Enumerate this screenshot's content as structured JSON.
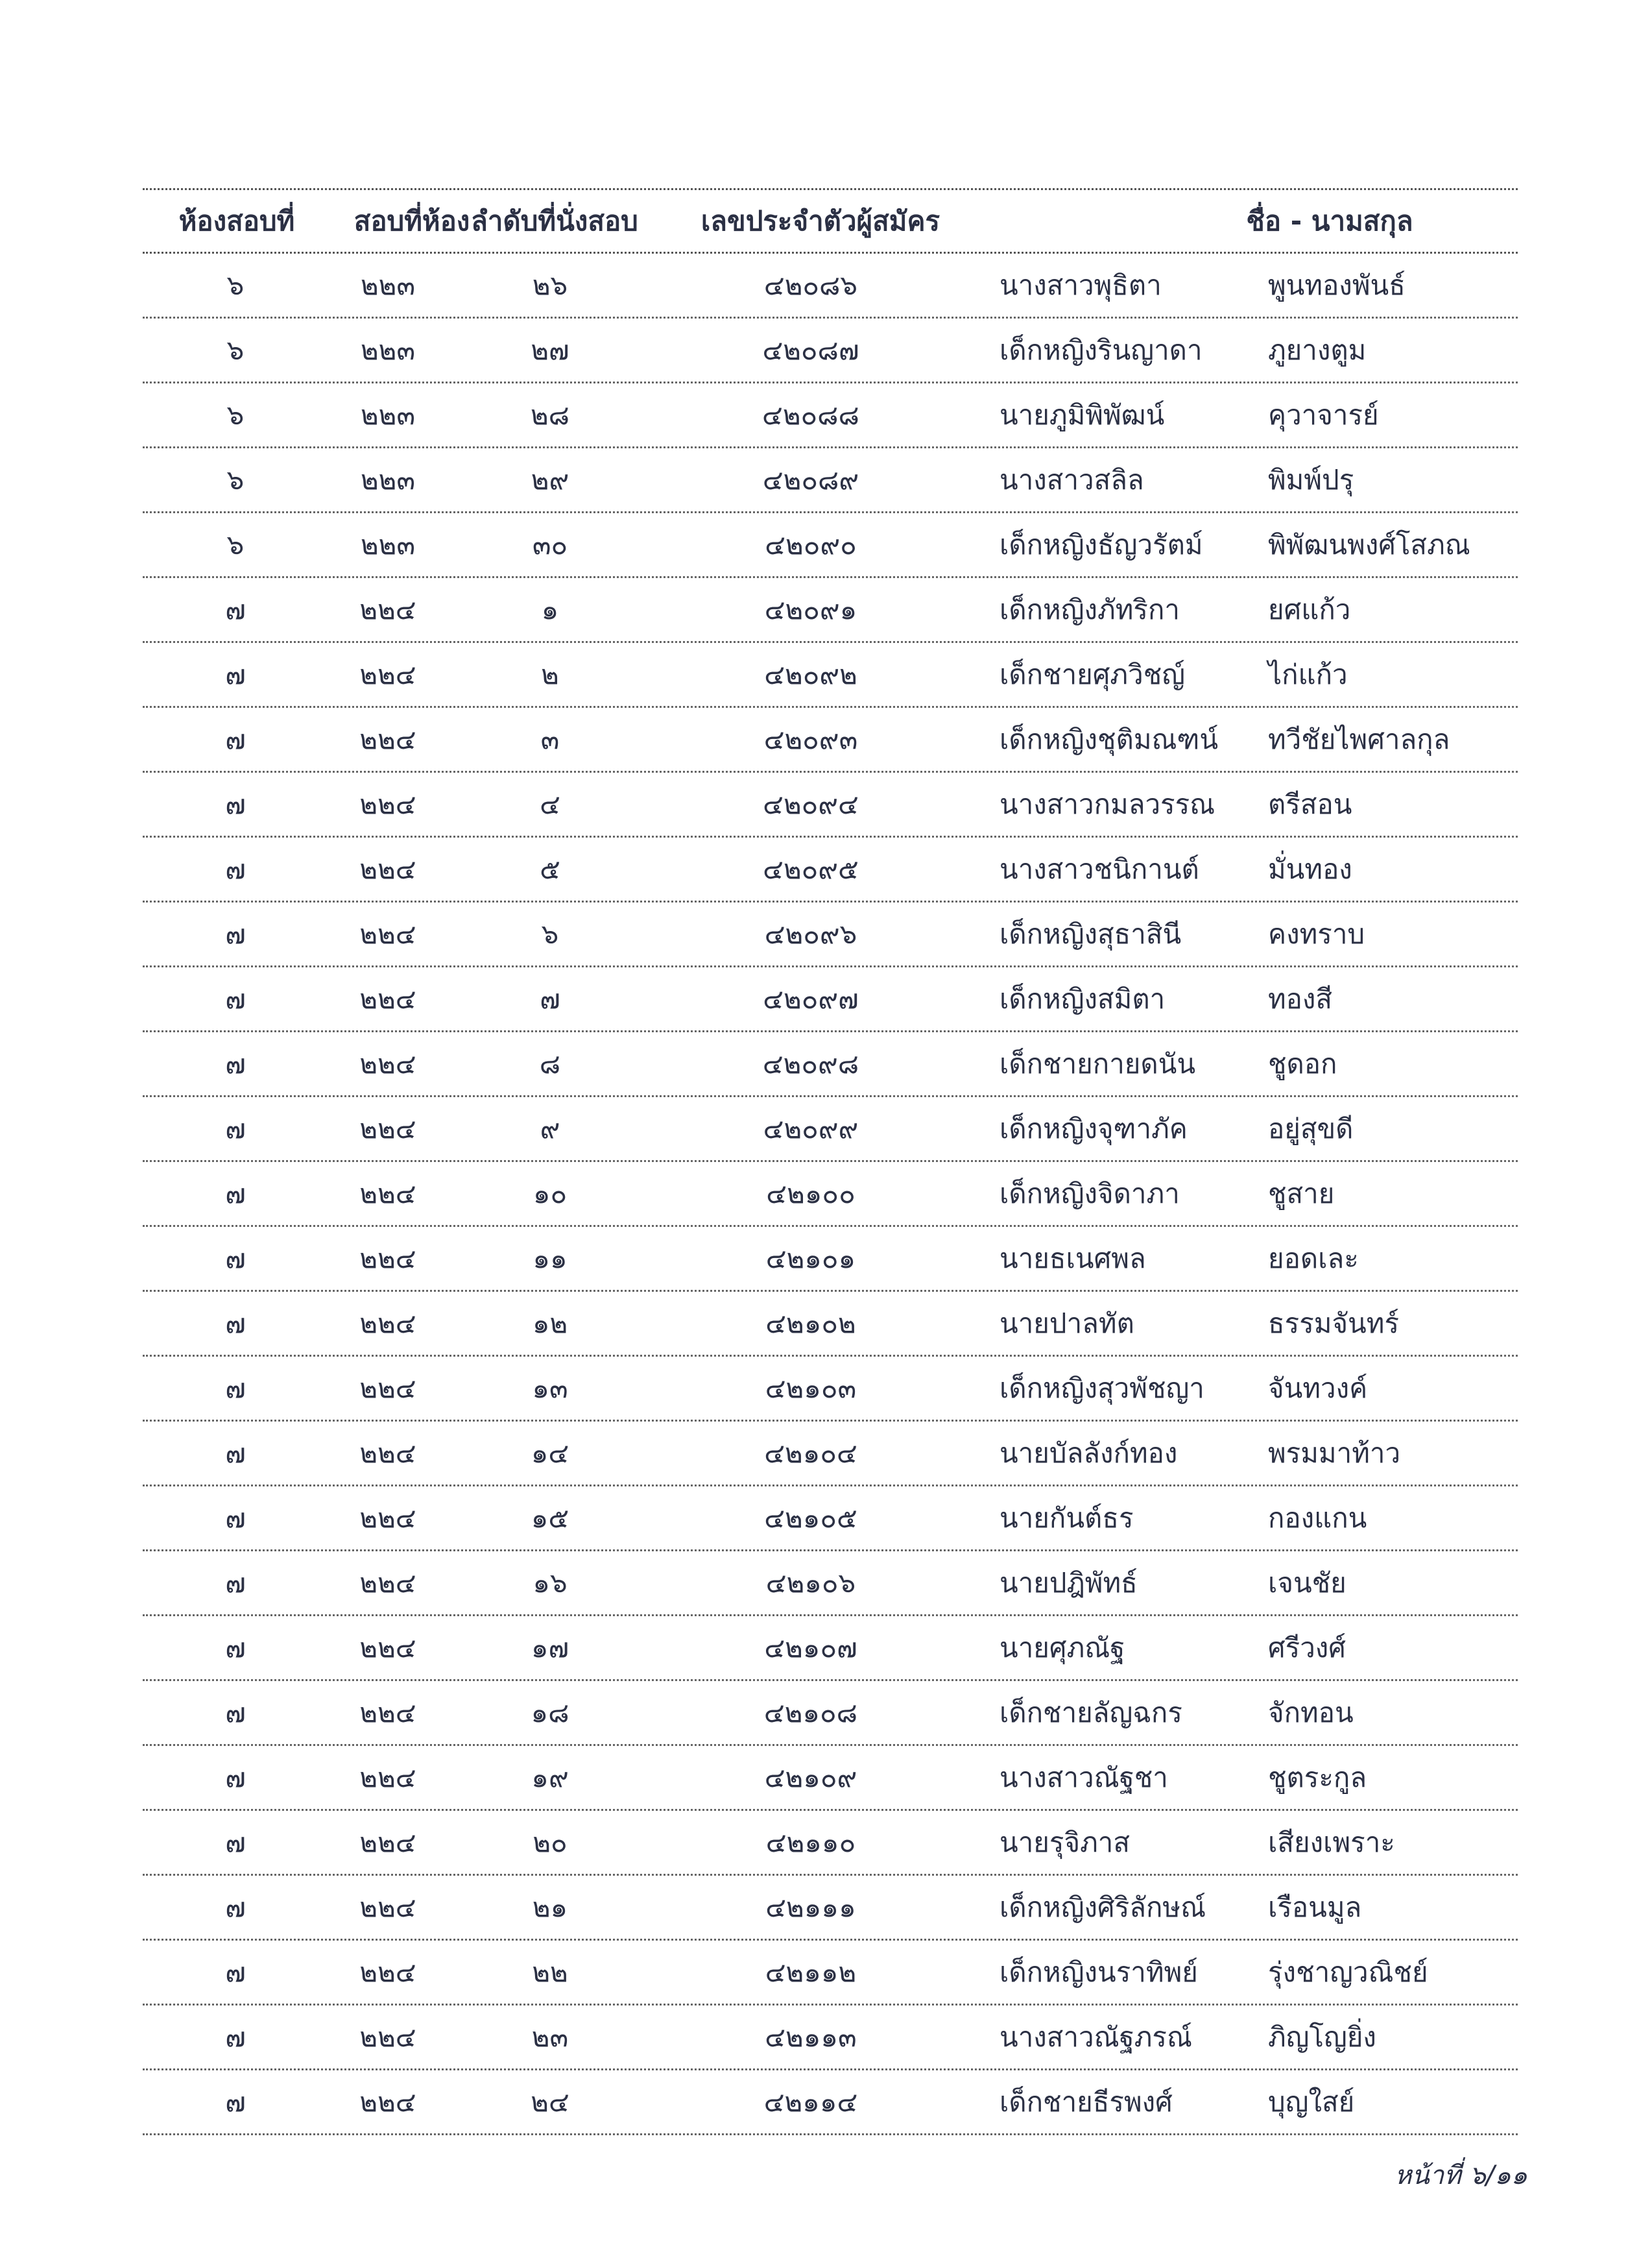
{
  "header": {
    "room": "ห้องสอบที่",
    "exam_room": "สอบที่ห้อง",
    "seat": "ลำดับที่นั่งสอบ",
    "applicant_id": "เลขประจำตัวผู้สมัคร",
    "name": "ชื่อ - นามสกุล"
  },
  "rows": [
    [
      "๖",
      "๒๒๓",
      "๒๖",
      "๔๒๐๘๖",
      "นางสาวพุธิตา",
      "พูนทองพันธ์"
    ],
    [
      "๖",
      "๒๒๓",
      "๒๗",
      "๔๒๐๘๗",
      "เด็กหญิงรินญาดา",
      "ภูยางตูม"
    ],
    [
      "๖",
      "๒๒๓",
      "๒๘",
      "๔๒๐๘๘",
      "นายภูมิพิพัฒน์",
      "คุวาจารย์"
    ],
    [
      "๖",
      "๒๒๓",
      "๒๙",
      "๔๒๐๘๙",
      "นางสาวสลิล",
      "พิมพ์ปรุ"
    ],
    [
      "๖",
      "๒๒๓",
      "๓๐",
      "๔๒๐๙๐",
      "เด็กหญิงธัญวรัตม์",
      "พิพัฒนพงศ์โสภณ"
    ],
    [
      "๗",
      "๒๒๔",
      "๑",
      "๔๒๐๙๑",
      "เด็กหญิงภัทริกา",
      "ยศแก้ว"
    ],
    [
      "๗",
      "๒๒๔",
      "๒",
      "๔๒๐๙๒",
      "เด็กชายศุภวิชญ์",
      "ไก่แก้ว"
    ],
    [
      "๗",
      "๒๒๔",
      "๓",
      "๔๒๐๙๓",
      "เด็กหญิงชุติมณฑน์",
      "ทวีชัยไพศาลกุล"
    ],
    [
      "๗",
      "๒๒๔",
      "๔",
      "๔๒๐๙๔",
      "นางสาวกมลวรรณ",
      "ตรีสอน"
    ],
    [
      "๗",
      "๒๒๔",
      "๕",
      "๔๒๐๙๕",
      "นางสาวชนิกานต์",
      "มั่นทอง"
    ],
    [
      "๗",
      "๒๒๔",
      "๖",
      "๔๒๐๙๖",
      "เด็กหญิงสุธาสินี",
      "คงทราบ"
    ],
    [
      "๗",
      "๒๒๔",
      "๗",
      "๔๒๐๙๗",
      "เด็กหญิงสมิตา",
      "ทองสี"
    ],
    [
      "๗",
      "๒๒๔",
      "๘",
      "๔๒๐๙๘",
      "เด็กชายกายดนัน",
      "ชูดอก"
    ],
    [
      "๗",
      "๒๒๔",
      "๙",
      "๔๒๐๙๙",
      "เด็กหญิงจุฑาภัค",
      "อยู่สุขดี"
    ],
    [
      "๗",
      "๒๒๔",
      "๑๐",
      "๔๒๑๐๐",
      "เด็กหญิงจิดาภา",
      "ชูสาย"
    ],
    [
      "๗",
      "๒๒๔",
      "๑๑",
      "๔๒๑๐๑",
      "นายธเนศพล",
      "ยอดเละ"
    ],
    [
      "๗",
      "๒๒๔",
      "๑๒",
      "๔๒๑๐๒",
      "นายปาลทัต",
      "ธรรมจันทร์"
    ],
    [
      "๗",
      "๒๒๔",
      "๑๓",
      "๔๒๑๐๓",
      "เด็กหญิงสุวพัชญา",
      "จันทวงค์"
    ],
    [
      "๗",
      "๒๒๔",
      "๑๔",
      "๔๒๑๐๔",
      "นายบัลลังก์ทอง",
      "พรมมาท้าว"
    ],
    [
      "๗",
      "๒๒๔",
      "๑๕",
      "๔๒๑๐๕",
      "นายกันต์ธร",
      "กองแกน"
    ],
    [
      "๗",
      "๒๒๔",
      "๑๖",
      "๔๒๑๐๖",
      "นายปฎิพัทธ์",
      "เจนชัย"
    ],
    [
      "๗",
      "๒๒๔",
      "๑๗",
      "๔๒๑๐๗",
      "นายศุภณัฐ",
      "ศรีวงศ์"
    ],
    [
      "๗",
      "๒๒๔",
      "๑๘",
      "๔๒๑๐๘",
      "เด็กชายลัญฉกร",
      "จักทอน"
    ],
    [
      "๗",
      "๒๒๔",
      "๑๙",
      "๔๒๑๐๙",
      "นางสาวณัฐชา",
      "ชูตระกูล"
    ],
    [
      "๗",
      "๒๒๔",
      "๒๐",
      "๔๒๑๑๐",
      "นายรุจิภาส",
      "เสียงเพราะ"
    ],
    [
      "๗",
      "๒๒๔",
      "๒๑",
      "๔๒๑๑๑",
      "เด็กหญิงศิริลักษณ์",
      "เรือนมูล"
    ],
    [
      "๗",
      "๒๒๔",
      "๒๒",
      "๔๒๑๑๒",
      "เด็กหญิงนราทิพย์",
      "รุ่งชาญวณิชย์"
    ],
    [
      "๗",
      "๒๒๔",
      "๒๓",
      "๔๒๑๑๓",
      "นางสาวณัฐภรณ์",
      "ภิญโญยิ่ง"
    ],
    [
      "๗",
      "๒๒๔",
      "๒๔",
      "๔๒๑๑๔",
      "เด็กชายธีรพงศ์",
      "บุญใสย์"
    ]
  ],
  "footer": {
    "page": "หน้าที่ ๖/๑๑"
  }
}
